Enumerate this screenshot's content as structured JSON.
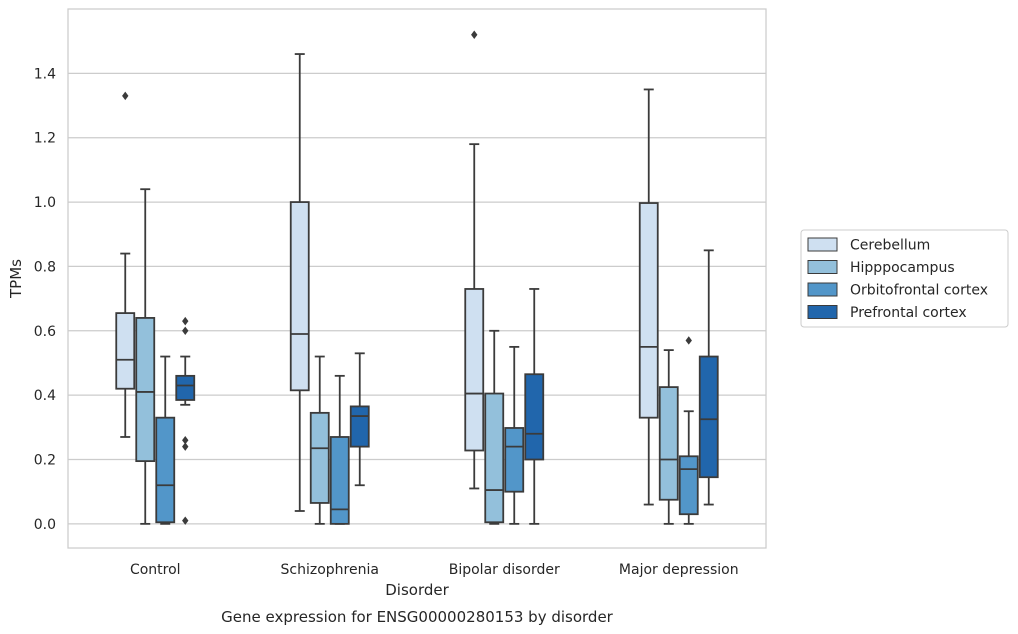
{
  "chart_data": {
    "type": "box",
    "caption": "Gene expression for ENSG00000280153 by disorder",
    "xlabel": "Disorder",
    "ylabel": "TPMs",
    "ylim": [
      -0.075,
      1.6
    ],
    "yticks": [
      0.0,
      0.2,
      0.4,
      0.6,
      0.8,
      1.0,
      1.2,
      1.4
    ],
    "ytick_labels": [
      "0.0",
      "0.2",
      "0.4",
      "0.6",
      "0.8",
      "1.0",
      "1.2",
      "1.4"
    ],
    "categories": [
      "Control",
      "Schizophrenia",
      "Bipolar disorder",
      "Major depression"
    ],
    "grid": "horizontal",
    "legend_position": "right",
    "series": [
      {
        "name": "Cerebellum",
        "color": "#cfe0f1",
        "boxes": [
          {
            "whisker_low": 0.27,
            "q1": 0.42,
            "median": 0.51,
            "q3": 0.655,
            "whisker_high": 0.84,
            "outliers": [
              1.33
            ]
          },
          {
            "whisker_low": 0.04,
            "q1": 0.415,
            "median": 0.59,
            "q3": 1.0,
            "whisker_high": 1.46,
            "outliers": []
          },
          {
            "whisker_low": 0.11,
            "q1": 0.228,
            "median": 0.405,
            "q3": 0.73,
            "whisker_high": 1.18,
            "outliers": [
              1.52
            ]
          },
          {
            "whisker_low": 0.06,
            "q1": 0.33,
            "median": 0.55,
            "q3": 0.997,
            "whisker_high": 1.35,
            "outliers": []
          }
        ]
      },
      {
        "name": "Hipppocampus",
        "color": "#93c0db",
        "boxes": [
          {
            "whisker_low": 0.0,
            "q1": 0.195,
            "median": 0.41,
            "q3": 0.64,
            "whisker_high": 1.04,
            "outliers": []
          },
          {
            "whisker_low": 0.0,
            "q1": 0.065,
            "median": 0.235,
            "q3": 0.345,
            "whisker_high": 0.52,
            "outliers": []
          },
          {
            "whisker_low": 0.0,
            "q1": 0.005,
            "median": 0.105,
            "q3": 0.405,
            "whisker_high": 0.6,
            "outliers": []
          },
          {
            "whisker_low": 0.0,
            "q1": 0.075,
            "median": 0.2,
            "q3": 0.425,
            "whisker_high": 0.54,
            "outliers": []
          }
        ]
      },
      {
        "name": "Orbitofrontal cortex",
        "color": "#5296c9",
        "boxes": [
          {
            "whisker_low": 0.0,
            "q1": 0.005,
            "median": 0.12,
            "q3": 0.33,
            "whisker_high": 0.52,
            "outliers": []
          },
          {
            "whisker_low": 0.0,
            "q1": 0.0,
            "median": 0.045,
            "q3": 0.27,
            "whisker_high": 0.46,
            "outliers": []
          },
          {
            "whisker_low": 0.0,
            "q1": 0.1,
            "median": 0.24,
            "q3": 0.298,
            "whisker_high": 0.55,
            "outliers": []
          },
          {
            "whisker_low": 0.0,
            "q1": 0.03,
            "median": 0.17,
            "q3": 0.21,
            "whisker_high": 0.35,
            "outliers": [
              0.57
            ]
          }
        ]
      },
      {
        "name": "Prefrontal cortex",
        "color": "#2166ac",
        "boxes": [
          {
            "whisker_low": 0.37,
            "q1": 0.385,
            "median": 0.43,
            "q3": 0.46,
            "whisker_high": 0.52,
            "outliers": [
              0.63,
              0.6,
              0.26,
              0.24,
              0.01
            ]
          },
          {
            "whisker_low": 0.12,
            "q1": 0.24,
            "median": 0.335,
            "q3": 0.365,
            "whisker_high": 0.53,
            "outliers": []
          },
          {
            "whisker_low": 0.0,
            "q1": 0.2,
            "median": 0.28,
            "q3": 0.465,
            "whisker_high": 0.73,
            "outliers": []
          },
          {
            "whisker_low": 0.06,
            "q1": 0.145,
            "median": 0.325,
            "q3": 0.52,
            "whisker_high": 0.85,
            "outliers": []
          }
        ]
      }
    ]
  }
}
